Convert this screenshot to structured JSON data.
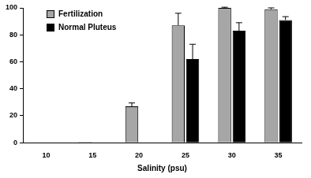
{
  "chart_data": {
    "type": "bar",
    "x_label": "Salinity (psu)",
    "categories": [
      "10",
      "15",
      "20",
      "25",
      "30",
      "35"
    ],
    "series": [
      {
        "name": "Fertilization",
        "color": "#a6a6a6",
        "values": [
          0,
          0.5,
          27,
          87,
          100,
          99
        ],
        "errors": [
          0,
          0,
          2.5,
          9,
          0.5,
          1
        ]
      },
      {
        "name": "Normal Pluteus",
        "color": "#000000",
        "values": [
          0,
          0,
          0,
          62,
          83,
          91
        ],
        "errors": [
          0,
          0,
          0,
          11,
          6,
          2.5
        ]
      }
    ],
    "ylim": [
      0,
      100
    ],
    "yticks": [
      0,
      20,
      40,
      60,
      80,
      100
    ],
    "grid": false,
    "legend": "upper left"
  }
}
